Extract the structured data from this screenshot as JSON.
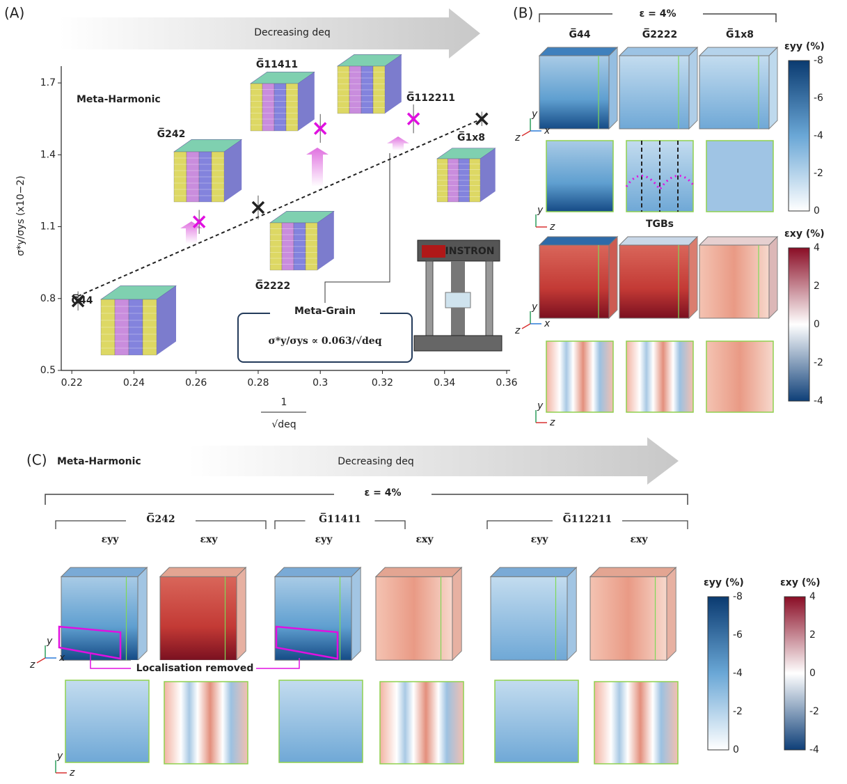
{
  "chart_data": {
    "type": "scatter",
    "panel_label": "(A)",
    "arrow_text": "Decreasing deq",
    "ylabel": "σ*y/σys (x10−2)",
    "xlabel_num": "1",
    "xlabel_den": "√deq",
    "xlim": [
      0.2166,
      0.36
    ],
    "ylim": [
      0.5,
      1.77
    ],
    "xticks": [
      0.22,
      0.24,
      0.26,
      0.28,
      0.3,
      0.32,
      0.34,
      0.36
    ],
    "yticks": [
      0.5,
      0.8,
      1.1,
      1.4,
      1.7
    ],
    "series": [
      {
        "color": "#222222",
        "x": [
          0.222,
          0.28,
          0.352
        ],
        "values": [
          0.79,
          1.18,
          1.55
        ],
        "errors": [
          0.04,
          0.05,
          0.03
        ],
        "labels": [
          "G̅44",
          "G̅2222",
          "G̅1x8"
        ]
      },
      {
        "color": "#e010e0",
        "x": [
          0.261,
          0.3,
          0.33
        ],
        "values": [
          1.12,
          1.51,
          1.55
        ],
        "errors": [
          0.05,
          0.06,
          0.06
        ],
        "labels": [
          "G̅242",
          "G̅11411",
          "G̅112211"
        ]
      }
    ],
    "fit_line": {
      "x": [
        0.222,
        0.352
      ],
      "values": [
        0.81,
        1.55
      ]
    },
    "harmonic_label": "Meta-Harmonic",
    "grain_label": "Meta-Grain",
    "equation": "σ*y/σys ∝ 0.063/√deq",
    "machine_label": "INSTRON"
  },
  "panel_b": {
    "label": "(B)",
    "strain": "ε = 4%",
    "columns": [
      "G̅44",
      "G̅2222",
      "G̅1x8"
    ],
    "tgb_label": "TGBs"
  },
  "panel_c": {
    "label": "(C)",
    "title": "Meta-Harmonic",
    "arrow_text": "Decreasing deq",
    "strain": "ε = 4%",
    "groups": [
      "G̅242",
      "G̅11411",
      "G̅112211"
    ],
    "component_yy": "εyy",
    "component_xy": "εxy",
    "note": "Localisation removed"
  },
  "colorbar_yy": {
    "title": "εyy (%)",
    "ticks": [
      "-8",
      "-6",
      "-4",
      "-2",
      "0"
    ]
  },
  "colorbar_xy": {
    "title": "εxy (%)",
    "ticks": [
      "4",
      "2",
      "0",
      "-2",
      "-4"
    ]
  },
  "triad": [
    "y",
    "x",
    "z"
  ]
}
